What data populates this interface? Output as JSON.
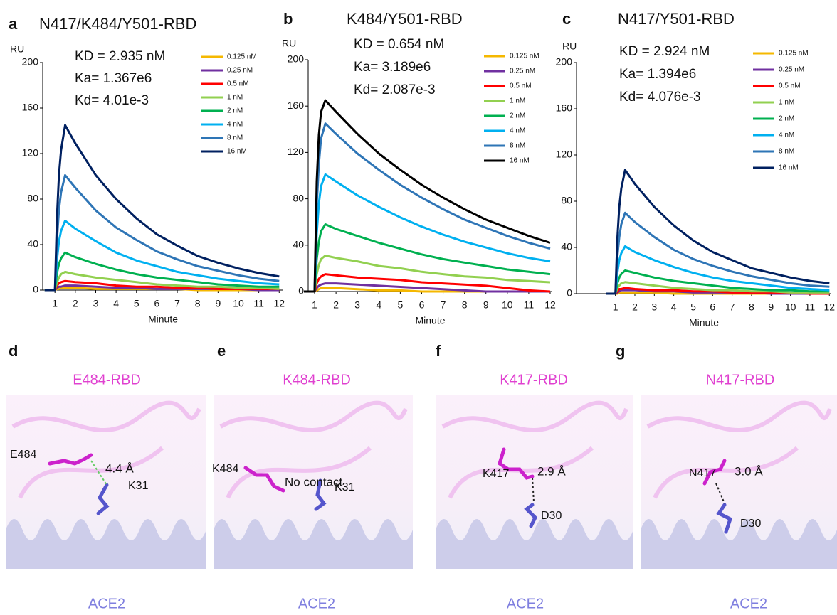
{
  "chart_data": [
    {
      "type": "line",
      "panel_label": "a",
      "title": "N417/K484/Y501-RBD",
      "y_label": "RU",
      "x_label": "Minute",
      "annotations": [
        "KD = 2.935 nM",
        "Ka= 1.367e6",
        "Kd= 4.01e-3"
      ],
      "x": [
        0.5,
        1,
        1.1,
        1.2,
        1.3,
        1.5,
        2,
        3,
        4,
        5,
        6,
        7,
        8,
        9,
        10,
        11,
        12
      ],
      "xlim": [
        0.4,
        12.2
      ],
      "xticks": [
        1,
        2,
        3,
        4,
        5,
        6,
        7,
        8,
        9,
        10,
        11,
        12
      ],
      "ylim": [
        0,
        200
      ],
      "yticks": [
        0,
        40,
        80,
        120,
        160,
        200
      ],
      "series": [
        {
          "name": "0.125 nM",
          "color": "#f5b800",
          "values": [
            0,
            0,
            1,
            1,
            2,
            2,
            2,
            1,
            1,
            1,
            1,
            1,
            0,
            0,
            0,
            0,
            0
          ]
        },
        {
          "name": "0.25 nM",
          "color": "#7030a0",
          "values": [
            0,
            0,
            2,
            3,
            3,
            4,
            4,
            3,
            2,
            2,
            1,
            1,
            1,
            1,
            1,
            0,
            0
          ]
        },
        {
          "name": "0.5 nM",
          "color": "#ff0000",
          "values": [
            0,
            0,
            4,
            6,
            7,
            8,
            7,
            6,
            4,
            3,
            3,
            2,
            2,
            1,
            1,
            1,
            1
          ]
        },
        {
          "name": "1 nM",
          "color": "#92d050",
          "values": [
            0,
            0,
            7,
            11,
            14,
            16,
            14,
            11,
            9,
            7,
            5,
            4,
            3,
            3,
            2,
            2,
            1
          ]
        },
        {
          "name": "2 nM",
          "color": "#00b050",
          "values": [
            0,
            0,
            15,
            23,
            28,
            33,
            29,
            23,
            18,
            14,
            11,
            9,
            7,
            5,
            4,
            3,
            3
          ]
        },
        {
          "name": "4 nM",
          "color": "#00b0f0",
          "values": [
            0,
            0,
            27,
            43,
            52,
            61,
            54,
            43,
            33,
            26,
            21,
            16,
            13,
            10,
            8,
            6,
            5
          ]
        },
        {
          "name": "8 nM",
          "color": "#2e75b6",
          "values": [
            0,
            0,
            45,
            71,
            86,
            101,
            90,
            70,
            55,
            44,
            34,
            27,
            21,
            17,
            13,
            10,
            8
          ]
        },
        {
          "name": "16 nM",
          "color": "#002060",
          "values": [
            0,
            0,
            65,
            102,
            123,
            145,
            129,
            101,
            80,
            63,
            49,
            39,
            30,
            24,
            19,
            15,
            12
          ]
        }
      ]
    },
    {
      "type": "line",
      "panel_label": "b",
      "title": "K484/Y501-RBD",
      "y_label": "RU",
      "x_label": "Minute",
      "annotations": [
        "KD = 0.654 nM",
        "Ka= 3.189e6",
        "Kd= 2.087e-3"
      ],
      "x": [
        0.5,
        1,
        1.1,
        1.2,
        1.3,
        1.5,
        2,
        3,
        4,
        5,
        6,
        7,
        8,
        9,
        10,
        11,
        12
      ],
      "xlim": [
        0.7,
        12.1
      ],
      "xticks": [
        1,
        2,
        3,
        4,
        5,
        6,
        7,
        8,
        9,
        10,
        11,
        12
      ],
      "ylim": [
        0,
        200
      ],
      "yticks": [
        0,
        40,
        80,
        120,
        160,
        200
      ],
      "series": [
        {
          "name": "0.125 nM",
          "color": "#f5b800",
          "values": [
            0,
            0,
            1,
            2,
            3,
            3,
            3,
            2,
            1,
            1,
            0,
            0,
            0,
            0,
            0,
            0,
            0
          ]
        },
        {
          "name": "0.25 nM",
          "color": "#7030a0",
          "values": [
            0,
            0,
            3,
            5,
            6,
            7,
            7,
            6,
            5,
            4,
            3,
            2,
            1,
            0,
            0,
            0,
            0
          ]
        },
        {
          "name": "0.5 nM",
          "color": "#ff0000",
          "values": [
            0,
            0,
            7,
            11,
            13,
            15,
            14,
            12,
            11,
            10,
            8,
            7,
            6,
            5,
            3,
            1,
            0
          ]
        },
        {
          "name": "1 nM",
          "color": "#92d050",
          "values": [
            0,
            0,
            15,
            23,
            28,
            31,
            29,
            26,
            22,
            20,
            17,
            15,
            13,
            12,
            10,
            9,
            8
          ]
        },
        {
          "name": "2 nM",
          "color": "#00b050",
          "values": [
            0,
            0,
            28,
            43,
            52,
            58,
            54,
            48,
            42,
            37,
            32,
            28,
            25,
            22,
            19,
            17,
            15
          ]
        },
        {
          "name": "4 nM",
          "color": "#00b0f0",
          "values": [
            0,
            0,
            50,
            76,
            91,
            101,
            95,
            83,
            73,
            64,
            56,
            49,
            43,
            38,
            33,
            29,
            26
          ]
        },
        {
          "name": "8 nM",
          "color": "#2e75b6",
          "values": [
            0,
            0,
            75,
            110,
            132,
            145,
            136,
            119,
            105,
            92,
            81,
            71,
            62,
            55,
            48,
            42,
            37
          ]
        },
        {
          "name": "16 nM",
          "color": "#000000",
          "values": [
            0,
            0,
            95,
            135,
            155,
            165,
            155,
            136,
            119,
            105,
            92,
            81,
            71,
            62,
            55,
            48,
            42
          ]
        }
      ]
    },
    {
      "type": "line",
      "panel_label": "c",
      "title": "N417/Y501-RBD",
      "y_label": "RU",
      "x_label": "Minute",
      "annotations": [
        "KD = 2.924 nM",
        "Ka= 1.394e6",
        "Kd= 4.076e-3"
      ],
      "x": [
        0.5,
        1,
        1.1,
        1.2,
        1.3,
        1.5,
        2,
        3,
        4,
        5,
        6,
        7,
        8,
        9,
        10,
        11,
        12
      ],
      "xlim": [
        -1,
        12.1
      ],
      "xticks": [
        1,
        2,
        3,
        4,
        5,
        6,
        7,
        8,
        9,
        10,
        11,
        12
      ],
      "ylim": [
        0,
        200
      ],
      "yticks": [
        0,
        40,
        80,
        120,
        160,
        200
      ],
      "series": [
        {
          "name": "0.125 nM",
          "color": "#f5b800",
          "values": [
            0,
            0,
            0,
            1,
            1,
            1,
            1,
            1,
            0,
            0,
            0,
            0,
            0,
            0,
            0,
            0,
            0
          ]
        },
        {
          "name": "0.25 nM",
          "color": "#7030a0",
          "values": [
            0,
            0,
            1,
            2,
            3,
            3,
            3,
            2,
            2,
            1,
            1,
            1,
            1,
            0,
            0,
            0,
            0
          ]
        },
        {
          "name": "0.5 nM",
          "color": "#ff0000",
          "values": [
            0,
            0,
            2,
            4,
            4,
            5,
            4,
            3,
            3,
            2,
            2,
            1,
            1,
            1,
            1,
            0,
            0
          ]
        },
        {
          "name": "1 nM",
          "color": "#92d050",
          "values": [
            0,
            0,
            5,
            7,
            9,
            10,
            9,
            7,
            5,
            4,
            3,
            3,
            2,
            2,
            1,
            1,
            1
          ]
        },
        {
          "name": "2 nM",
          "color": "#00b050",
          "values": [
            0,
            0,
            9,
            14,
            17,
            20,
            18,
            14,
            11,
            9,
            7,
            5,
            4,
            3,
            3,
            2,
            2
          ]
        },
        {
          "name": "4 nM",
          "color": "#00b0f0",
          "values": [
            0,
            0,
            18,
            29,
            35,
            41,
            36,
            29,
            23,
            18,
            14,
            11,
            9,
            7,
            5,
            4,
            3
          ]
        },
        {
          "name": "8 nM",
          "color": "#2e75b6",
          "values": [
            0,
            0,
            32,
            49,
            60,
            70,
            62,
            49,
            38,
            30,
            24,
            19,
            15,
            12,
            9,
            7,
            6
          ]
        },
        {
          "name": "16 nM",
          "color": "#002060",
          "values": [
            0,
            0,
            48,
            75,
            91,
            107,
            95,
            75,
            59,
            46,
            36,
            29,
            22,
            18,
            14,
            11,
            9
          ]
        }
      ]
    }
  ],
  "structures": [
    {
      "panel": "d",
      "title": "E484-RBD",
      "residue": "E484",
      "distance": "4.4 Å",
      "partner": "K31",
      "chain": "ACE2"
    },
    {
      "panel": "e",
      "title": "K484-RBD",
      "residue": "K484",
      "distance": "No contact",
      "partner": "K31",
      "chain": "ACE2"
    },
    {
      "panel": "f",
      "title": "K417-RBD",
      "residue": "K417",
      "distance": "2.9 Å",
      "partner": "D30",
      "chain": "ACE2"
    },
    {
      "panel": "g",
      "title": "N417-RBD",
      "residue": "N417",
      "distance": "3.0 Å",
      "partner": "D30",
      "chain": "ACE2"
    }
  ]
}
